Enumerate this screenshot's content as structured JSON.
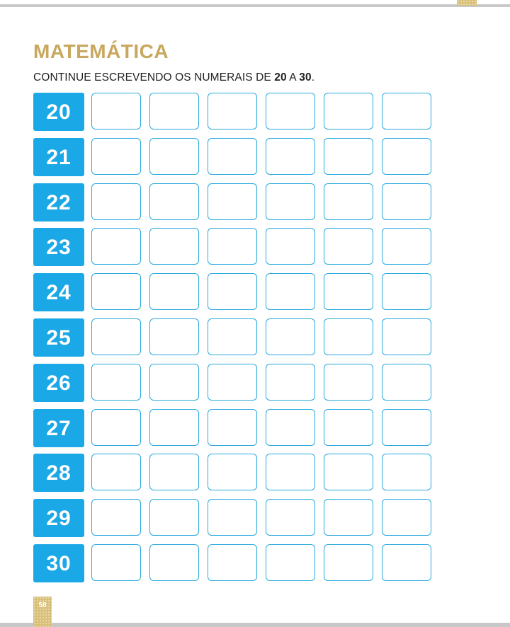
{
  "header": {
    "subject": "MATEMÁTICA"
  },
  "instruction": {
    "text_before": "CONTINUE ESCREVENDO OS NUMERAIS DE ",
    "from": "20",
    "text_middle": " A ",
    "to": "30",
    "text_after": "."
  },
  "exercise": {
    "numbers": [
      "20",
      "21",
      "22",
      "23",
      "24",
      "25",
      "26",
      "27",
      "28",
      "29",
      "30"
    ],
    "blank_boxes_per_row": 6
  },
  "footer": {
    "page_number": "58"
  },
  "colors": {
    "title_gold": "#c8a85e",
    "number_tile_blue": "#1aa8e6",
    "box_border_blue": "#29a9de",
    "page_tab_gold": "#d8bf7a",
    "rule_gray": "#c8c8c8"
  }
}
